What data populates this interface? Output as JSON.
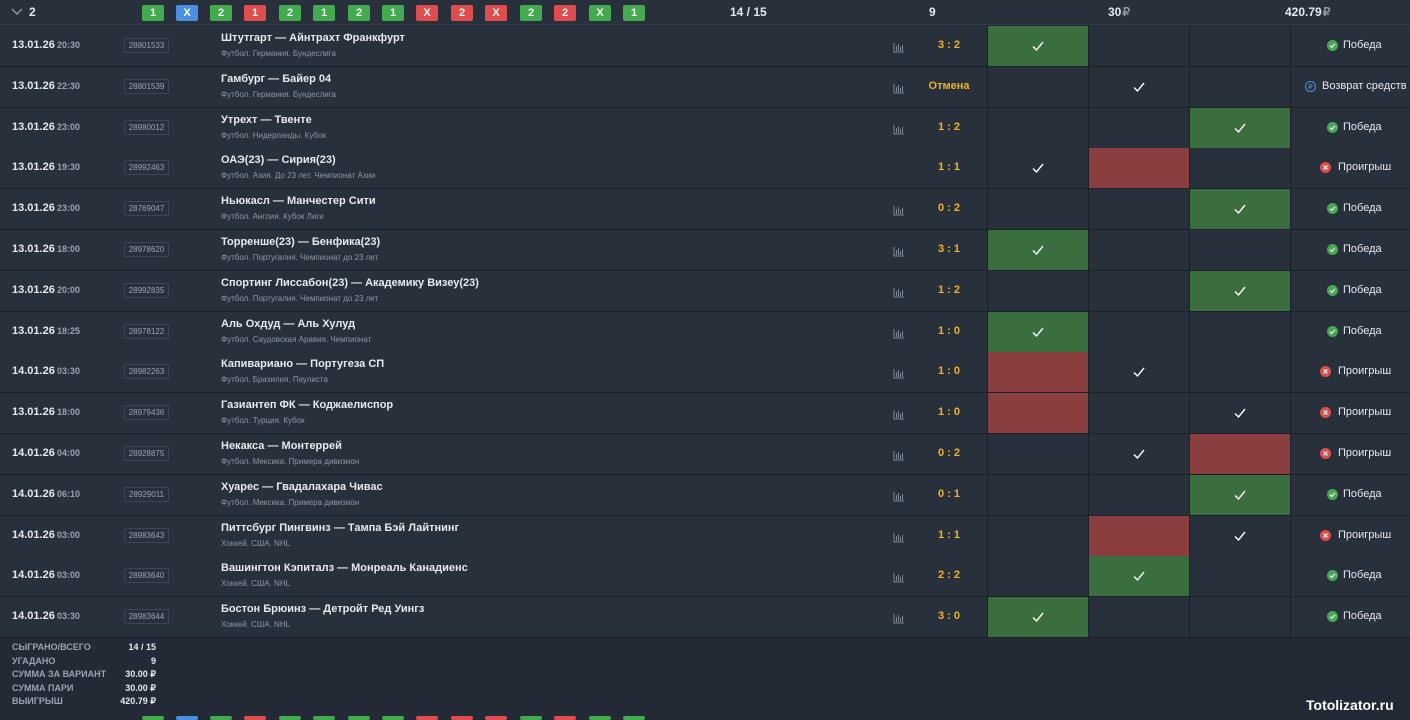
{
  "header": {
    "group_number": "2",
    "badges": [
      {
        "label": "1",
        "color": "green"
      },
      {
        "label": "X",
        "color": "blue"
      },
      {
        "label": "2",
        "color": "green"
      },
      {
        "label": "1",
        "color": "red"
      },
      {
        "label": "2",
        "color": "green"
      },
      {
        "label": "1",
        "color": "green"
      },
      {
        "label": "2",
        "color": "green"
      },
      {
        "label": "1",
        "color": "green"
      },
      {
        "label": "X",
        "color": "red"
      },
      {
        "label": "2",
        "color": "red"
      },
      {
        "label": "X",
        "color": "red"
      },
      {
        "label": "2",
        "color": "green"
      },
      {
        "label": "2",
        "color": "red"
      },
      {
        "label": "X",
        "color": "green"
      },
      {
        "label": "1",
        "color": "green"
      }
    ],
    "played_count": "14 / 15",
    "guessed": "9",
    "stake": "30",
    "winnings": "420.79",
    "currency": "₽"
  },
  "rows": [
    {
      "date": "13.01.26",
      "time": "20:30",
      "id": "28801533",
      "match": "Штутгарт — Айнтрахт Франкфурт",
      "league": "Футбол. Германия. Бундеслига",
      "score": "3 : 2",
      "stat": true,
      "cells": [
        "green",
        "",
        ""
      ],
      "check": 1,
      "result": "Победа",
      "result_type": "win"
    },
    {
      "date": "13.01.26",
      "time": "22:30",
      "id": "28801539",
      "match": "Гамбург — Байер 04",
      "league": "Футбол. Германия. Бундеслига",
      "score": "Отмена",
      "stat": true,
      "cells": [
        "",
        "",
        ""
      ],
      "check": 2,
      "result": "Возврат средств",
      "result_type": "refund"
    },
    {
      "date": "13.01.26",
      "time": "23:00",
      "id": "28980012",
      "match": "Утрехт — Твенте",
      "league": "Футбол. Нидерланды. Кубок",
      "score": "1 : 2",
      "stat": true,
      "cells": [
        "",
        "",
        "green"
      ],
      "check": 3,
      "result": "Победа",
      "result_type": "win"
    },
    {
      "date": "13.01.26",
      "time": "19:30",
      "id": "28992463",
      "match": "ОАЭ(23) — Сирия(23)",
      "league": "Футбол. Азия. До 23 лет. Чемпионат Азии",
      "score": "1 : 1",
      "stat": false,
      "cells": [
        "",
        "red",
        ""
      ],
      "check": 1,
      "result": "Проигрыш",
      "result_type": "loss"
    },
    {
      "date": "13.01.26",
      "time": "23:00",
      "id": "28769047",
      "match": "Ньюкасл — Манчестер Сити",
      "league": "Футбол. Англия. Кубок Лиги",
      "score": "0 : 2",
      "stat": true,
      "cells": [
        "",
        "",
        "green"
      ],
      "check": 3,
      "result": "Победа",
      "result_type": "win"
    },
    {
      "date": "13.01.26",
      "time": "18:00",
      "id": "28978620",
      "match": "Торренше(23) — Бенфика(23)",
      "league": "Футбол. Португалия. Чемпионат до 23 лет",
      "score": "3 : 1",
      "stat": true,
      "cells": [
        "green",
        "",
        ""
      ],
      "check": 1,
      "result": "Победа",
      "result_type": "win"
    },
    {
      "date": "13.01.26",
      "time": "20:00",
      "id": "28992835",
      "match": "Спортинг Лиссабон(23) — Академику Визеу(23)",
      "league": "Футбол. Португалия. Чемпионат до 23 лет",
      "score": "1 : 2",
      "stat": true,
      "cells": [
        "",
        "",
        "green"
      ],
      "check": 3,
      "result": "Победа",
      "result_type": "win"
    },
    {
      "date": "13.01.26",
      "time": "18:25",
      "id": "28978122",
      "match": "Аль Охдуд — Аль Хулуд",
      "league": "Футбол. Саудовская Аравия. Чемпионат",
      "score": "1 : 0",
      "stat": true,
      "cells": [
        "green",
        "",
        ""
      ],
      "check": 1,
      "result": "Победа",
      "result_type": "win"
    },
    {
      "date": "14.01.26",
      "time": "03:30",
      "id": "28982263",
      "match": "Капивариано — Португеза СП",
      "league": "Футбол. Бразилия. Паулиста",
      "score": "1 : 0",
      "stat": true,
      "cells": [
        "red",
        "",
        ""
      ],
      "check": 2,
      "result": "Проигрыш",
      "result_type": "loss"
    },
    {
      "date": "13.01.26",
      "time": "18:00",
      "id": "28979436",
      "match": "Газиантеп ФК — Коджаелиспор",
      "league": "Футбол. Турция. Кубок",
      "score": "1 : 0",
      "stat": true,
      "cells": [
        "red",
        "",
        ""
      ],
      "check": 3,
      "result": "Проигрыш",
      "result_type": "loss"
    },
    {
      "date": "14.01.26",
      "time": "04:00",
      "id": "28928875",
      "match": "Некакса — Монтеррей",
      "league": "Футбол. Мексика. Примера дивизион",
      "score": "0 : 2",
      "stat": true,
      "cells": [
        "",
        "",
        "red"
      ],
      "check": 2,
      "result": "Проигрыш",
      "result_type": "loss"
    },
    {
      "date": "14.01.26",
      "time": "06:10",
      "id": "28929011",
      "match": "Хуарес — Гвадалахара Чивас",
      "league": "Футбол. Мексика. Примера дивизион",
      "score": "0 : 1",
      "stat": true,
      "cells": [
        "",
        "",
        "green"
      ],
      "check": 3,
      "result": "Победа",
      "result_type": "win"
    },
    {
      "date": "14.01.26",
      "time": "03:00",
      "id": "28983643",
      "match": "Питтсбург Пингвинз — Тампа Бэй Лайтнинг",
      "league": "Хоккей. США. NHL",
      "score": "1 : 1",
      "stat": true,
      "cells": [
        "",
        "red",
        ""
      ],
      "check": 3,
      "result": "Проигрыш",
      "result_type": "loss"
    },
    {
      "date": "14.01.26",
      "time": "03:00",
      "id": "28983640",
      "match": "Вашингтон Кэпиталз — Монреаль Канадиенс",
      "league": "Хоккей. США. NHL",
      "score": "2 : 2",
      "stat": true,
      "cells": [
        "",
        "green",
        ""
      ],
      "check": 2,
      "result": "Победа",
      "result_type": "win"
    },
    {
      "date": "14.01.26",
      "time": "03:30",
      "id": "28983644",
      "match": "Бостон Брюинз — Детройт Ред Уингз",
      "league": "Хоккей. США. NHL",
      "score": "3 : 0",
      "stat": true,
      "cells": [
        "green",
        "",
        ""
      ],
      "check": 1,
      "result": "Победа",
      "result_type": "win"
    }
  ],
  "summary": [
    {
      "label": "СЫГРАНО/ВСЕГО",
      "value": "14 / 15"
    },
    {
      "label": "УГАДАНО",
      "value": "9"
    },
    {
      "label": "СУММА ЗА ВАРИАНТ",
      "value": "30.00 ₽"
    },
    {
      "label": "СУММА ПАРИ",
      "value": "30.00 ₽"
    },
    {
      "label": "ВЫИГРЫШ",
      "value": "420.79 ₽"
    }
  ],
  "watermark": "Totolizator.ru",
  "colors": {
    "win": "#41ab4d",
    "loss": "#e14c4c",
    "refund": "#4a90e2",
    "score": "#f2b31f"
  }
}
